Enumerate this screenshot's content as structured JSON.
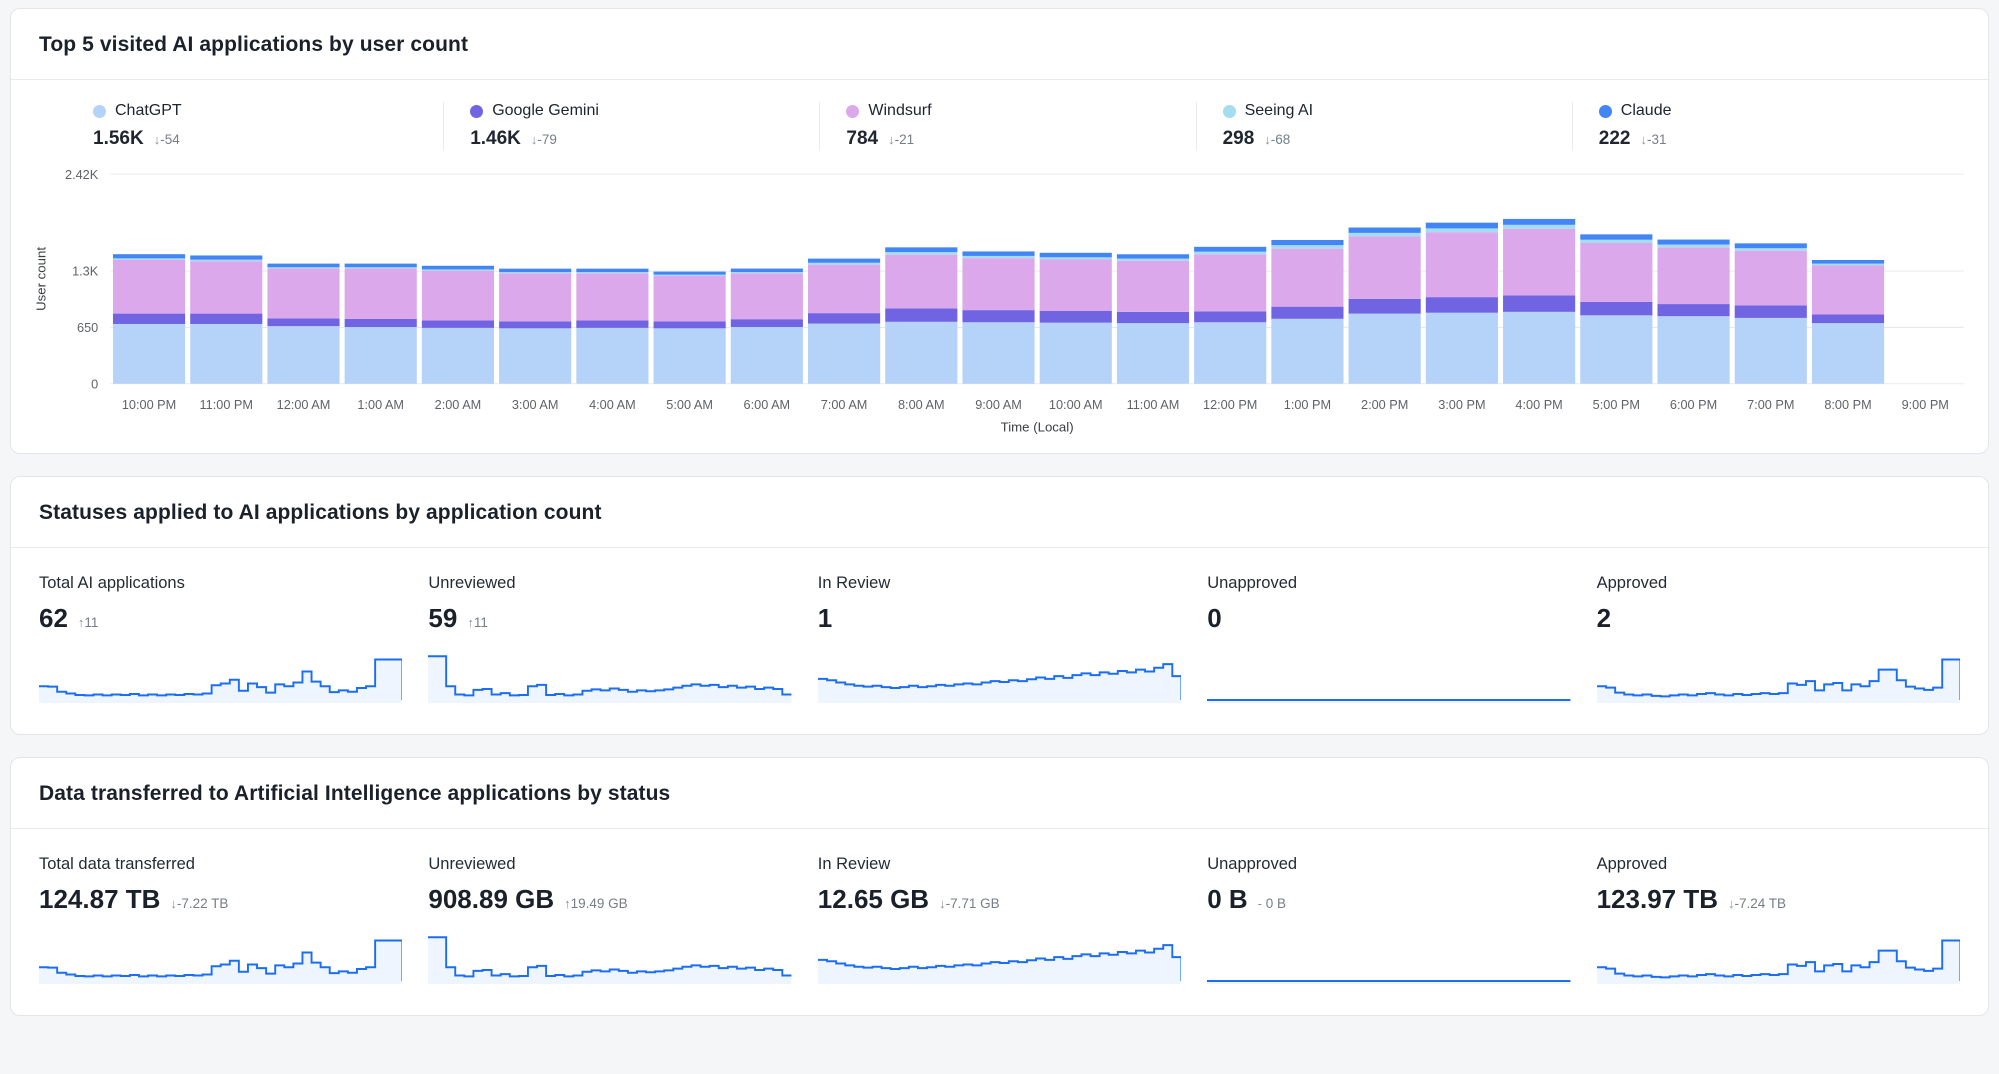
{
  "colors": {
    "accent_line": "#1B6EF3",
    "spark_fill": "#1B6EF3",
    "grid": "#E9EAEE",
    "axis_text": "#5F6368",
    "axis_title_text": "#3C4043",
    "chatgpt": "#B5D2F8",
    "gemini": "#7164E3",
    "windsurf": "#DCA8EC",
    "seeing_ai": "#A5DCEF",
    "claude": "#4286F5"
  },
  "panels": {
    "visits": {
      "title": "Top 5 visited AI applications by user count",
      "legend": [
        {
          "name": "ChatGPT",
          "value": "1.56K",
          "delta": "-54",
          "direction": "down",
          "color": "#B5D2F8"
        },
        {
          "name": "Google Gemini",
          "value": "1.46K",
          "delta": "-79",
          "direction": "down",
          "color": "#7164E3"
        },
        {
          "name": "Windsurf",
          "value": "784",
          "delta": "-21",
          "direction": "down",
          "color": "#DCA8EC"
        },
        {
          "name": "Seeing AI",
          "value": "298",
          "delta": "-68",
          "direction": "down",
          "color": "#A5DCEF"
        },
        {
          "name": "Claude",
          "value": "222",
          "delta": "-31",
          "direction": "down",
          "color": "#4286F5"
        }
      ]
    },
    "statuses": {
      "title": "Statuses applied to AI applications by application count",
      "cards": [
        {
          "label": "Total AI applications",
          "value": "62",
          "delta": "11",
          "direction": "up",
          "spark": "total"
        },
        {
          "label": "Unreviewed",
          "value": "59",
          "delta": "11",
          "direction": "up",
          "spark": "unreviewed"
        },
        {
          "label": "In Review",
          "value": "1",
          "delta": "",
          "direction": "",
          "spark": "inreview"
        },
        {
          "label": "Unapproved",
          "value": "0",
          "delta": "",
          "direction": "",
          "spark": "unapproved"
        },
        {
          "label": "Approved",
          "value": "2",
          "delta": "",
          "direction": "",
          "spark": "approved"
        }
      ]
    },
    "data_transfer": {
      "title": "Data transferred to Artificial Intelligence applications by status",
      "cards": [
        {
          "label": "Total data transferred",
          "value": "124.87 TB",
          "delta": "-7.22 TB",
          "direction": "down",
          "spark": "total"
        },
        {
          "label": "Unreviewed",
          "value": "908.89 GB",
          "delta": "19.49 GB",
          "direction": "up",
          "spark": "unreviewed"
        },
        {
          "label": "In Review",
          "value": "12.65 GB",
          "delta": "-7.71 GB",
          "direction": "down",
          "spark": "inreview"
        },
        {
          "label": "Unapproved",
          "value": "0 B",
          "delta": "0 B",
          "direction": "flat",
          "spark": "unapproved"
        },
        {
          "label": "Approved",
          "value": "123.97 TB",
          "delta": "-7.24 TB",
          "direction": "down",
          "spark": "approved"
        }
      ]
    }
  },
  "chart_data": [
    {
      "type": "bar",
      "stacked": true,
      "title": "Top 5 visited AI applications by user count",
      "xlabel": "Time (Local)",
      "ylabel": "User count",
      "ylim": [
        0,
        2420
      ],
      "yticks": [
        {
          "value": 0,
          "label": "0"
        },
        {
          "value": 650,
          "label": "650"
        },
        {
          "value": 1300,
          "label": "1.3K"
        },
        {
          "value": 2420,
          "label": "2.42K"
        }
      ],
      "categories": [
        "10:00 PM",
        "11:00 PM",
        "12:00 AM",
        "1:00 AM",
        "2:00 AM",
        "3:00 AM",
        "4:00 AM",
        "5:00 AM",
        "6:00 AM",
        "7:00 AM",
        "8:00 AM",
        "9:00 AM",
        "10:00 AM",
        "11:00 AM",
        "12:00 PM",
        "1:00 PM",
        "2:00 PM",
        "3:00 PM",
        "4:00 PM",
        "5:00 PM",
        "6:00 PM",
        "7:00 PM",
        "8:00 PM",
        "9:00 PM"
      ],
      "series": [
        {
          "name": "ChatGPT",
          "color": "#B5D2F8",
          "values": [
            690,
            690,
            665,
            655,
            645,
            640,
            645,
            640,
            655,
            695,
            715,
            710,
            705,
            700,
            710,
            750,
            810,
            820,
            830,
            790,
            780,
            760,
            700,
            0
          ]
        },
        {
          "name": "Google Gemini",
          "color": "#7164E3",
          "values": [
            120,
            120,
            90,
            95,
            85,
            80,
            85,
            80,
            90,
            120,
            155,
            140,
            135,
            130,
            125,
            140,
            170,
            180,
            190,
            155,
            140,
            145,
            100,
            0
          ]
        },
        {
          "name": "Windsurf",
          "color": "#DCA8EC",
          "values": [
            620,
            605,
            575,
            580,
            575,
            555,
            545,
            525,
            530,
            560,
            620,
            600,
            595,
            590,
            660,
            670,
            720,
            750,
            770,
            680,
            655,
            630,
            565,
            0
          ]
        },
        {
          "name": "Seeing AI",
          "color": "#A5DCEF",
          "values": [
            18,
            18,
            15,
            15,
            15,
            14,
            14,
            14,
            15,
            22,
            30,
            26,
            25,
            25,
            30,
            40,
            42,
            44,
            45,
            38,
            32,
            30,
            22,
            0
          ]
        },
        {
          "name": "Claude",
          "color": "#4286F5",
          "values": [
            48,
            48,
            42,
            42,
            42,
            40,
            40,
            36,
            40,
            48,
            55,
            52,
            52,
            50,
            56,
            60,
            62,
            66,
            68,
            62,
            58,
            56,
            42,
            0
          ]
        }
      ],
      "legend_position": "top",
      "grid": true
    },
    {
      "type": "line",
      "name": "status-sparklines",
      "style": "step",
      "normalized": true,
      "series": [
        {
          "name": "total",
          "end_drop": true,
          "values": [
            0.3,
            0.29,
            0.18,
            0.14,
            0.11,
            0.1,
            0.12,
            0.1,
            0.12,
            0.11,
            0.13,
            0.1,
            0.12,
            0.1,
            0.12,
            0.11,
            0.13,
            0.12,
            0.14,
            0.32,
            0.36,
            0.44,
            0.2,
            0.36,
            0.28,
            0.16,
            0.34,
            0.3,
            0.38,
            0.62,
            0.4,
            0.3,
            0.17,
            0.21,
            0.18,
            0.26,
            0.3,
            0.88,
            0.88,
            0.88
          ]
        },
        {
          "name": "unreviewed",
          "end_drop": false,
          "values": [
            0.95,
            0.95,
            0.3,
            0.12,
            0.1,
            0.22,
            0.24,
            0.12,
            0.15,
            0.1,
            0.11,
            0.3,
            0.33,
            0.11,
            0.13,
            0.1,
            0.12,
            0.2,
            0.23,
            0.21,
            0.25,
            0.22,
            0.18,
            0.21,
            0.19,
            0.21,
            0.23,
            0.27,
            0.31,
            0.34,
            0.31,
            0.33,
            0.28,
            0.31,
            0.27,
            0.29,
            0.24,
            0.27,
            0.24,
            0.12
          ]
        },
        {
          "name": "inreview",
          "end_drop": true,
          "values": [
            0.46,
            0.43,
            0.38,
            0.34,
            0.31,
            0.29,
            0.31,
            0.28,
            0.26,
            0.28,
            0.31,
            0.28,
            0.3,
            0.33,
            0.31,
            0.34,
            0.36,
            0.34,
            0.38,
            0.41,
            0.39,
            0.43,
            0.41,
            0.45,
            0.49,
            0.46,
            0.52,
            0.48,
            0.54,
            0.58,
            0.54,
            0.6,
            0.57,
            0.63,
            0.6,
            0.66,
            0.62,
            0.7,
            0.78,
            0.52
          ]
        },
        {
          "name": "unapproved",
          "end_drop": false,
          "values": [
            0,
            0,
            0,
            0,
            0,
            0,
            0,
            0,
            0,
            0,
            0,
            0,
            0,
            0,
            0,
            0,
            0,
            0,
            0,
            0,
            0,
            0,
            0,
            0,
            0,
            0,
            0,
            0,
            0,
            0,
            0,
            0,
            0,
            0,
            0,
            0,
            0,
            0,
            0,
            0
          ]
        },
        {
          "name": "approved",
          "end_drop": true,
          "values": [
            0.3,
            0.27,
            0.16,
            0.12,
            0.1,
            0.12,
            0.09,
            0.08,
            0.1,
            0.12,
            0.1,
            0.13,
            0.15,
            0.12,
            0.1,
            0.13,
            0.11,
            0.13,
            0.15,
            0.13,
            0.15,
            0.36,
            0.33,
            0.41,
            0.21,
            0.34,
            0.37,
            0.21,
            0.34,
            0.3,
            0.41,
            0.66,
            0.66,
            0.43,
            0.29,
            0.25,
            0.22,
            0.27,
            0.88,
            0.88
          ]
        }
      ]
    }
  ]
}
